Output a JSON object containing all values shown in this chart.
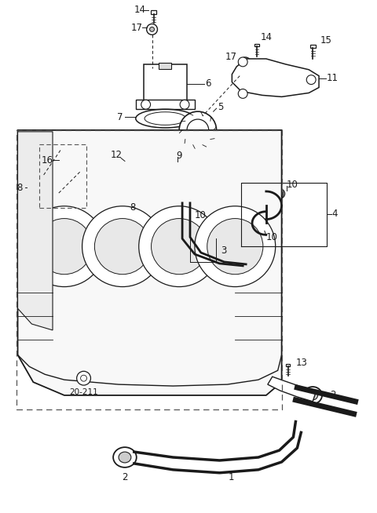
{
  "bg_color": "#ffffff",
  "line_color": "#1a1a1a",
  "label_color": "#1a1a1a",
  "fig_w": 4.8,
  "fig_h": 6.54,
  "dpi": 100
}
